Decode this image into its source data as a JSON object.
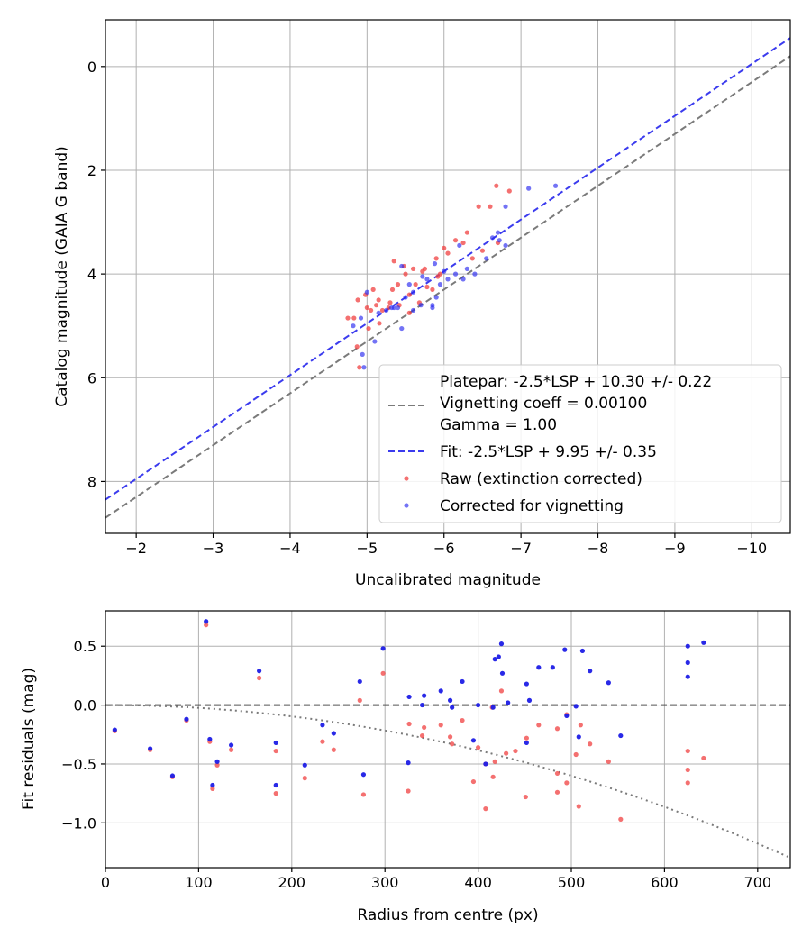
{
  "chart_data": [
    {
      "type": "scatter",
      "xlabel": "Uncalibrated magnitude",
      "ylabel": "Catalog magnitude (GAIA G band)",
      "xlim": [
        -1.6,
        -10.5
      ],
      "ylim": [
        9.0,
        -0.9
      ],
      "x_inverted": true,
      "y_inverted": true,
      "xticks": [
        -2,
        -3,
        -4,
        -5,
        -6,
        -7,
        -8,
        -9,
        -10
      ],
      "xtick_labels": [
        "−2",
        "−3",
        "−4",
        "−5",
        "−6",
        "−7",
        "−8",
        "−9",
        "−10"
      ],
      "yticks": [
        0,
        2,
        4,
        6,
        8
      ],
      "ytick_labels": [
        "0",
        "2",
        "4",
        "6",
        "8"
      ],
      "grid": true,
      "legend_position": "lower-right",
      "legend": [
        {
          "label": "Platepar: -2.5*LSP + 10.30 +/- 0.22",
          "style": "none"
        },
        {
          "label": "Vignetting coeff = 0.00100",
          "style": "gray-dashed-line"
        },
        {
          "label": "Gamma = 1.00",
          "style": "none"
        },
        {
          "label": "Fit: -2.5*LSP + 9.95 +/- 0.35",
          "style": "blue-dashed-line"
        },
        {
          "label": "Raw (extinction corrected)",
          "style": "red-dot"
        },
        {
          "label": "Corrected for vignetting",
          "style": "blue-dot"
        }
      ],
      "lines": [
        {
          "name": "Platepar",
          "slope": 1.0,
          "intercept": 10.3,
          "color": "#7a7a7a",
          "dashed": true
        },
        {
          "name": "Fit",
          "slope": 1.0,
          "intercept": 9.95,
          "color": "#3b3bee",
          "dashed": true
        }
      ],
      "series": [
        {
          "name": "Raw (extinction corrected)",
          "color": "#f04040",
          "points": [
            [
              -4.75,
              4.85
            ],
            [
              -4.83,
              4.85
            ],
            [
              -4.87,
              5.4
            ],
            [
              -4.9,
              5.8
            ],
            [
              -4.88,
              4.5
            ],
            [
              -4.98,
              4.4
            ],
            [
              -5.0,
              4.65
            ],
            [
              -5.05,
              4.7
            ],
            [
              -5.08,
              4.3
            ],
            [
              -5.12,
              4.6
            ],
            [
              -5.15,
              4.5
            ],
            [
              -5.2,
              4.7
            ],
            [
              -5.28,
              4.65
            ],
            [
              -5.3,
              4.55
            ],
            [
              -5.33,
              4.3
            ],
            [
              -5.35,
              3.75
            ],
            [
              -5.4,
              4.2
            ],
            [
              -5.42,
              4.6
            ],
            [
              -5.48,
              3.85
            ],
            [
              -5.5,
              4.0
            ],
            [
              -5.55,
              4.4
            ],
            [
              -5.6,
              3.9
            ],
            [
              -5.63,
              4.2
            ],
            [
              -5.68,
              4.55
            ],
            [
              -5.72,
              3.95
            ],
            [
              -5.75,
              3.9
            ],
            [
              -5.78,
              4.25
            ],
            [
              -5.85,
              4.3
            ],
            [
              -5.9,
              3.7
            ],
            [
              -5.95,
              4.0
            ],
            [
              -6.0,
              3.5
            ],
            [
              -6.05,
              3.6
            ],
            [
              -6.15,
              3.35
            ],
            [
              -6.25,
              3.4
            ],
            [
              -6.3,
              3.2
            ],
            [
              -6.37,
              3.7
            ],
            [
              -6.45,
              2.7
            ],
            [
              -6.6,
              2.7
            ],
            [
              -6.68,
              2.3
            ],
            [
              -6.7,
              3.4
            ],
            [
              -6.85,
              2.4
            ],
            [
              -5.02,
              5.05
            ],
            [
              -5.16,
              4.95
            ],
            [
              -5.55,
              4.75
            ],
            [
              -5.92,
              4.05
            ],
            [
              -6.5,
              3.55
            ]
          ]
        },
        {
          "name": "Corrected for vignetting",
          "color": "#2828f0",
          "points": [
            [
              -4.82,
              5.0
            ],
            [
              -4.92,
              4.85
            ],
            [
              -4.94,
              5.55
            ],
            [
              -4.96,
              5.8
            ],
            [
              -5.0,
              4.35
            ],
            [
              -5.1,
              5.3
            ],
            [
              -5.15,
              4.75
            ],
            [
              -5.25,
              4.7
            ],
            [
              -5.32,
              4.65
            ],
            [
              -5.4,
              4.65
            ],
            [
              -5.45,
              5.05
            ],
            [
              -5.45,
              3.85
            ],
            [
              -5.5,
              4.45
            ],
            [
              -5.55,
              4.2
            ],
            [
              -5.6,
              4.35
            ],
            [
              -5.7,
              4.6
            ],
            [
              -5.72,
              4.05
            ],
            [
              -5.78,
              4.1
            ],
            [
              -5.85,
              4.6
            ],
            [
              -5.88,
              3.8
            ],
            [
              -5.9,
              4.45
            ],
            [
              -5.95,
              4.2
            ],
            [
              -6.0,
              3.95
            ],
            [
              -6.05,
              4.1
            ],
            [
              -6.15,
              4.0
            ],
            [
              -6.2,
              3.45
            ],
            [
              -6.25,
              4.1
            ],
            [
              -6.3,
              3.9
            ],
            [
              -6.4,
              4.0
            ],
            [
              -6.55,
              3.7
            ],
            [
              -6.63,
              3.3
            ],
            [
              -6.7,
              3.2
            ],
            [
              -6.72,
              3.35
            ],
            [
              -6.8,
              2.7
            ],
            [
              -6.8,
              3.45
            ],
            [
              -7.1,
              2.35
            ],
            [
              -7.45,
              2.3
            ],
            [
              -5.35,
              4.65
            ],
            [
              -5.6,
              4.7
            ],
            [
              -5.85,
              4.65
            ]
          ]
        }
      ]
    },
    {
      "type": "scatter",
      "xlabel": "Radius from centre (px)",
      "ylabel": "Fit residuals (mag)",
      "xlim": [
        0,
        735
      ],
      "ylim": [
        -1.38,
        0.8
      ],
      "xticks": [
        0,
        100,
        200,
        300,
        400,
        500,
        600,
        700
      ],
      "xtick_labels": [
        "0",
        "100",
        "200",
        "300",
        "400",
        "500",
        "600",
        "700"
      ],
      "yticks": [
        0.5,
        0.0,
        -0.5,
        -1.0
      ],
      "ytick_labels": [
        "0.5",
        "0.0",
        "−0.5",
        "−1.0"
      ],
      "grid": true,
      "zero_line": {
        "y": 0.0,
        "color": "#555555",
        "dashed": true
      },
      "vignetting_curve": {
        "type": "quadratic",
        "coeff": -2.4e-06,
        "color": "#7a7a7a",
        "dotted": true
      },
      "series": [
        {
          "name": "Raw (extinction corrected)",
          "color": "#f04040",
          "points": [
            [
              10,
              -0.22
            ],
            [
              48,
              -0.38
            ],
            [
              72,
              -0.61
            ],
            [
              87,
              -0.13
            ],
            [
              108,
              0.68
            ],
            [
              112,
              -0.31
            ],
            [
              115,
              -0.71
            ],
            [
              120,
              -0.51
            ],
            [
              135,
              -0.38
            ],
            [
              165,
              0.23
            ],
            [
              183,
              -0.39
            ],
            [
              183,
              -0.75
            ],
            [
              214,
              -0.62
            ],
            [
              233,
              -0.31
            ],
            [
              245,
              -0.38
            ],
            [
              273,
              0.04
            ],
            [
              277,
              -0.76
            ],
            [
              298,
              0.27
            ],
            [
              325,
              -0.73
            ],
            [
              326,
              -0.16
            ],
            [
              340,
              -0.26
            ],
            [
              342,
              -0.19
            ],
            [
              360,
              -0.17
            ],
            [
              370,
              -0.27
            ],
            [
              372,
              -0.33
            ],
            [
              383,
              -0.13
            ],
            [
              395,
              -0.65
            ],
            [
              400,
              -0.36
            ],
            [
              408,
              -0.88
            ],
            [
              416,
              -0.61
            ],
            [
              418,
              -0.48
            ],
            [
              425,
              0.12
            ],
            [
              430,
              -0.41
            ],
            [
              440,
              -0.39
            ],
            [
              451,
              -0.78
            ],
            [
              452,
              -0.28
            ],
            [
              465,
              -0.17
            ],
            [
              485,
              -0.74
            ],
            [
              485,
              -0.2
            ],
            [
              495,
              -0.66
            ],
            [
              505,
              -0.42
            ],
            [
              508,
              -0.86
            ],
            [
              510,
              -0.17
            ],
            [
              520,
              -0.33
            ],
            [
              540,
              -0.48
            ],
            [
              553,
              -0.97
            ],
            [
              625,
              -0.39
            ],
            [
              625,
              -0.55
            ],
            [
              625,
              -0.66
            ],
            [
              642,
              -0.45
            ],
            [
              408,
              -0.5
            ],
            [
              495,
              -0.08
            ],
            [
              415,
              -0.02
            ],
            [
              485,
              -0.58
            ]
          ]
        },
        {
          "name": "Corrected for vignetting",
          "color": "#1e1ee6",
          "points": [
            [
              10,
              -0.21
            ],
            [
              48,
              -0.37
            ],
            [
              72,
              -0.6
            ],
            [
              87,
              -0.12
            ],
            [
              108,
              0.71
            ],
            [
              112,
              -0.29
            ],
            [
              115,
              -0.68
            ],
            [
              120,
              -0.48
            ],
            [
              135,
              -0.34
            ],
            [
              165,
              0.29
            ],
            [
              183,
              -0.32
            ],
            [
              183,
              -0.68
            ],
            [
              214,
              -0.51
            ],
            [
              233,
              -0.17
            ],
            [
              245,
              -0.24
            ],
            [
              273,
              0.2
            ],
            [
              277,
              -0.59
            ],
            [
              298,
              0.48
            ],
            [
              325,
              -0.49
            ],
            [
              326,
              0.07
            ],
            [
              340,
              -0.0
            ],
            [
              342,
              0.08
            ],
            [
              360,
              0.12
            ],
            [
              370,
              0.04
            ],
            [
              372,
              -0.02
            ],
            [
              383,
              0.2
            ],
            [
              395,
              -0.3
            ],
            [
              400,
              0.0
            ],
            [
              408,
              -0.5
            ],
            [
              416,
              -0.02
            ],
            [
              418,
              0.39
            ],
            [
              422,
              0.41
            ],
            [
              425,
              0.52
            ],
            [
              426,
              0.27
            ],
            [
              432,
              0.02
            ],
            [
              452,
              -0.32
            ],
            [
              452,
              0.18
            ],
            [
              455,
              0.04
            ],
            [
              465,
              0.32
            ],
            [
              480,
              0.32
            ],
            [
              493,
              0.47
            ],
            [
              495,
              -0.09
            ],
            [
              505,
              -0.01
            ],
            [
              508,
              -0.27
            ],
            [
              512,
              0.46
            ],
            [
              520,
              0.29
            ],
            [
              540,
              0.19
            ],
            [
              553,
              -0.26
            ],
            [
              625,
              0.5
            ],
            [
              625,
              0.36
            ],
            [
              625,
              0.24
            ],
            [
              642,
              0.53
            ]
          ]
        }
      ]
    }
  ]
}
